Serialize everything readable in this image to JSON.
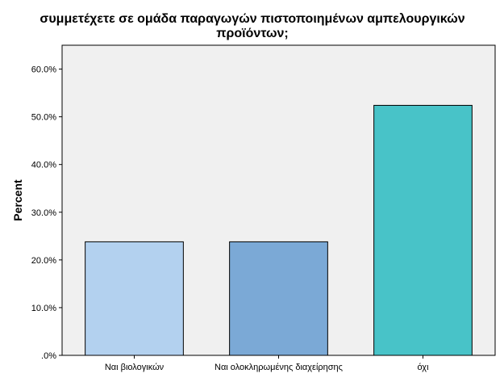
{
  "chart_data": {
    "type": "bar",
    "title": [
      "συμμετέχετε σε ομάδα παραγωγών πιστοποιημένων αμπελουργικών",
      "προϊόντων;"
    ],
    "xlabel": "",
    "ylabel": "Percent",
    "categories": [
      "Ναι βιολογικών",
      "Ναι ολοκληρωμένης διαχείρησης",
      "όχι"
    ],
    "values": [
      23.8,
      23.8,
      52.4
    ],
    "bar_colors": [
      "#b3d1ef",
      "#7ba9d6",
      "#48c3c8"
    ],
    "ylim": [
      0,
      65
    ],
    "yticks": [
      0,
      10,
      20,
      30,
      40,
      50,
      60
    ],
    "ytick_labels": [
      ".0%",
      "10.0%",
      "20.0%",
      "30.0%",
      "40.0%",
      "50.0%",
      "60.0%"
    ],
    "plot_background": "#f0f0f0",
    "grid": false,
    "legend": "none"
  }
}
